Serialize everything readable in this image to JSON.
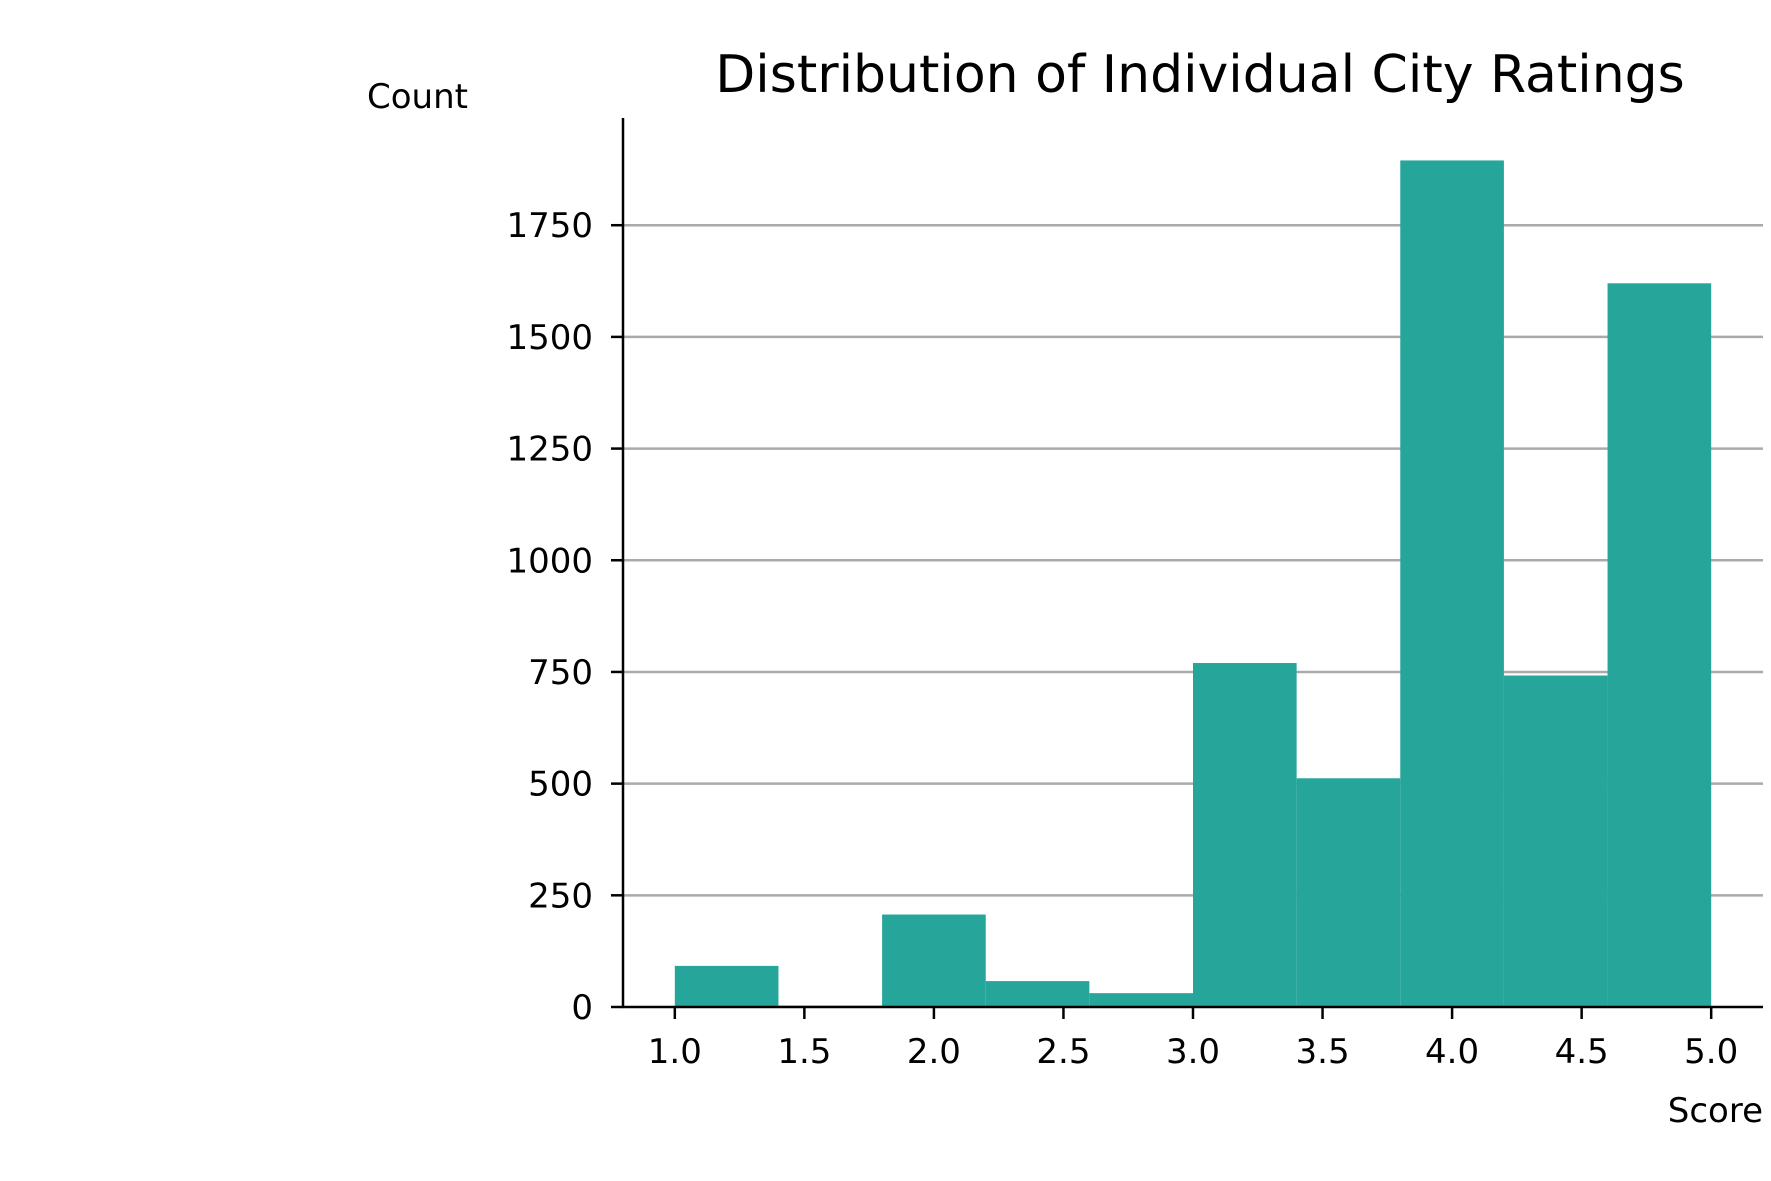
{
  "chart_data": {
    "type": "bar",
    "title": "Distribution of Individual City Ratings",
    "xlabel": "Score",
    "ylabel": "Count",
    "bins": [
      {
        "x0": 1.0,
        "x1": 1.4,
        "value": 92
      },
      {
        "x0": 1.4,
        "x1": 1.8,
        "value": 3
      },
      {
        "x0": 1.8,
        "x1": 2.2,
        "value": 207
      },
      {
        "x0": 2.2,
        "x1": 2.6,
        "value": 58
      },
      {
        "x0": 2.6,
        "x1": 3.0,
        "value": 31
      },
      {
        "x0": 3.0,
        "x1": 3.4,
        "value": 770
      },
      {
        "x0": 3.4,
        "x1": 3.8,
        "value": 512
      },
      {
        "x0": 3.8,
        "x1": 4.2,
        "value": 1895
      },
      {
        "x0": 4.2,
        "x1": 4.6,
        "value": 742
      },
      {
        "x0": 4.6,
        "x1": 5.0,
        "value": 1620
      }
    ],
    "xlim": [
      0.8,
      5.2
    ],
    "ylim": [
      0,
      1990
    ],
    "xticks": [
      1.0,
      1.5,
      2.0,
      2.5,
      3.0,
      3.5,
      4.0,
      4.5,
      5.0
    ],
    "xtick_labels": [
      "1.0",
      "1.5",
      "2.0",
      "2.5",
      "3.0",
      "3.5",
      "4.0",
      "4.5",
      "5.0"
    ],
    "yticks": [
      0,
      250,
      500,
      750,
      1000,
      1250,
      1500,
      1750
    ],
    "ytick_labels": [
      "0",
      "250",
      "500",
      "750",
      "1000",
      "1250",
      "1500",
      "1750"
    ],
    "grid": "horizontal",
    "bar_color": "#26a69a",
    "grid_color": "#aaaaaa",
    "axis_color": "#000000"
  }
}
